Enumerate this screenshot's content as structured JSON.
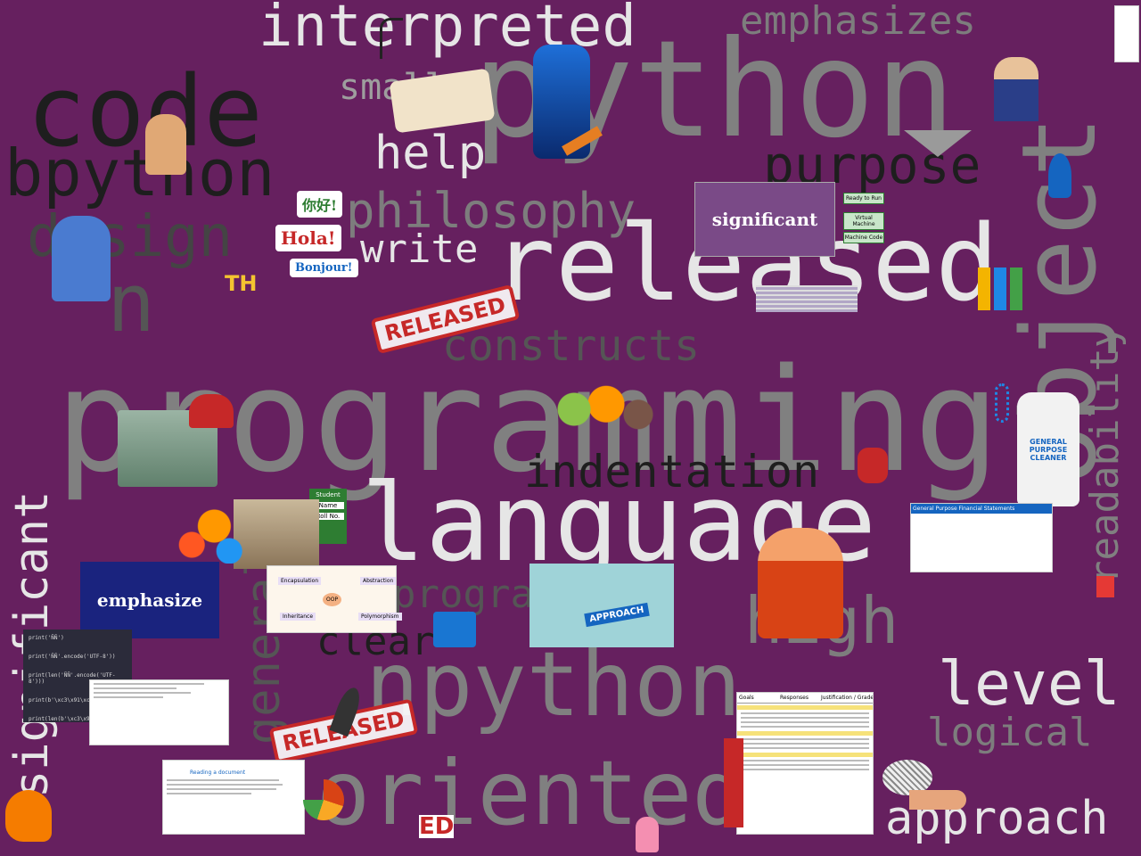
{
  "words": {
    "interpreted": "interpreted",
    "emphasizes": "emphasizes",
    "python_big": "python",
    "code": "code",
    "small": "small",
    "bpython": "bpython",
    "help": "help",
    "purpose": "purpose",
    "object": "object",
    "design": "design",
    "philosophy": "philosophy",
    "write": "write",
    "released": "released",
    "n": "n",
    "readability": "readability",
    "constructs": "constructs",
    "programming": "programming",
    "indentation": "indentation",
    "language": "language",
    "significant_vertical": "significant",
    "programmers": "programme",
    "general": "general",
    "high": "high",
    "clear": "clear",
    "npython": "npython",
    "level": "level",
    "logical": "logical",
    "oriented": "oriented",
    "approach": "approach"
  },
  "images": {
    "significant_slide": "significant",
    "emphasize_slide": "emphasize",
    "released_stamp_1": "RELEASED",
    "released_stamp_2": "RELEASED",
    "hola": "Hola!",
    "nihao": "你好!",
    "bonjour": "Bonjour!",
    "th_text": "TH",
    "ed_text": "ED",
    "approach_diagram_center": "APPROACH",
    "financial_title": "General Purpose Financial Statements",
    "cleaner_label": "GENERAL PURPOSE CLEANER",
    "student_title": "Student",
    "student_name": "Name",
    "student_roll": "Roll No.",
    "vm_box_1": "Ready to Run",
    "vm_box_2": "Virtual Machine",
    "vm_box_3": "Machine Code",
    "oop_center": "OOP",
    "oop_1": "Encapsulation",
    "oop_2": "Abstraction",
    "oop_3": "Inheritance",
    "oop_4": "Polymorphism",
    "code_line_1": "print('ÑÑ')",
    "code_line_2": "print('ÑÑ'.encode('UTF-8'))",
    "code_line_3": "print(len('ÑÑ'.encode('UTF-8')))",
    "code_line_4": "print(b'\\xc3\\x91\\xc3\\x91'.decode",
    "code_line_5": "print(len(b'\\xc3\\x91\\xc3\\x91'",
    "doc_heading": "Reading a document",
    "table_col_1": "Goals",
    "table_col_2": "Responses",
    "table_col_3": "Justification / Grade Information"
  },
  "colors": {
    "background": "#66205f",
    "gray_light": "#c8c8c8",
    "gray_mid": "#808080",
    "gray_dark": "#555555",
    "black_word": "#1e1e1e",
    "white_word": "#e6e6e6",
    "slide_purple": "#7a4a87",
    "slide_blue": "#1a237e"
  }
}
